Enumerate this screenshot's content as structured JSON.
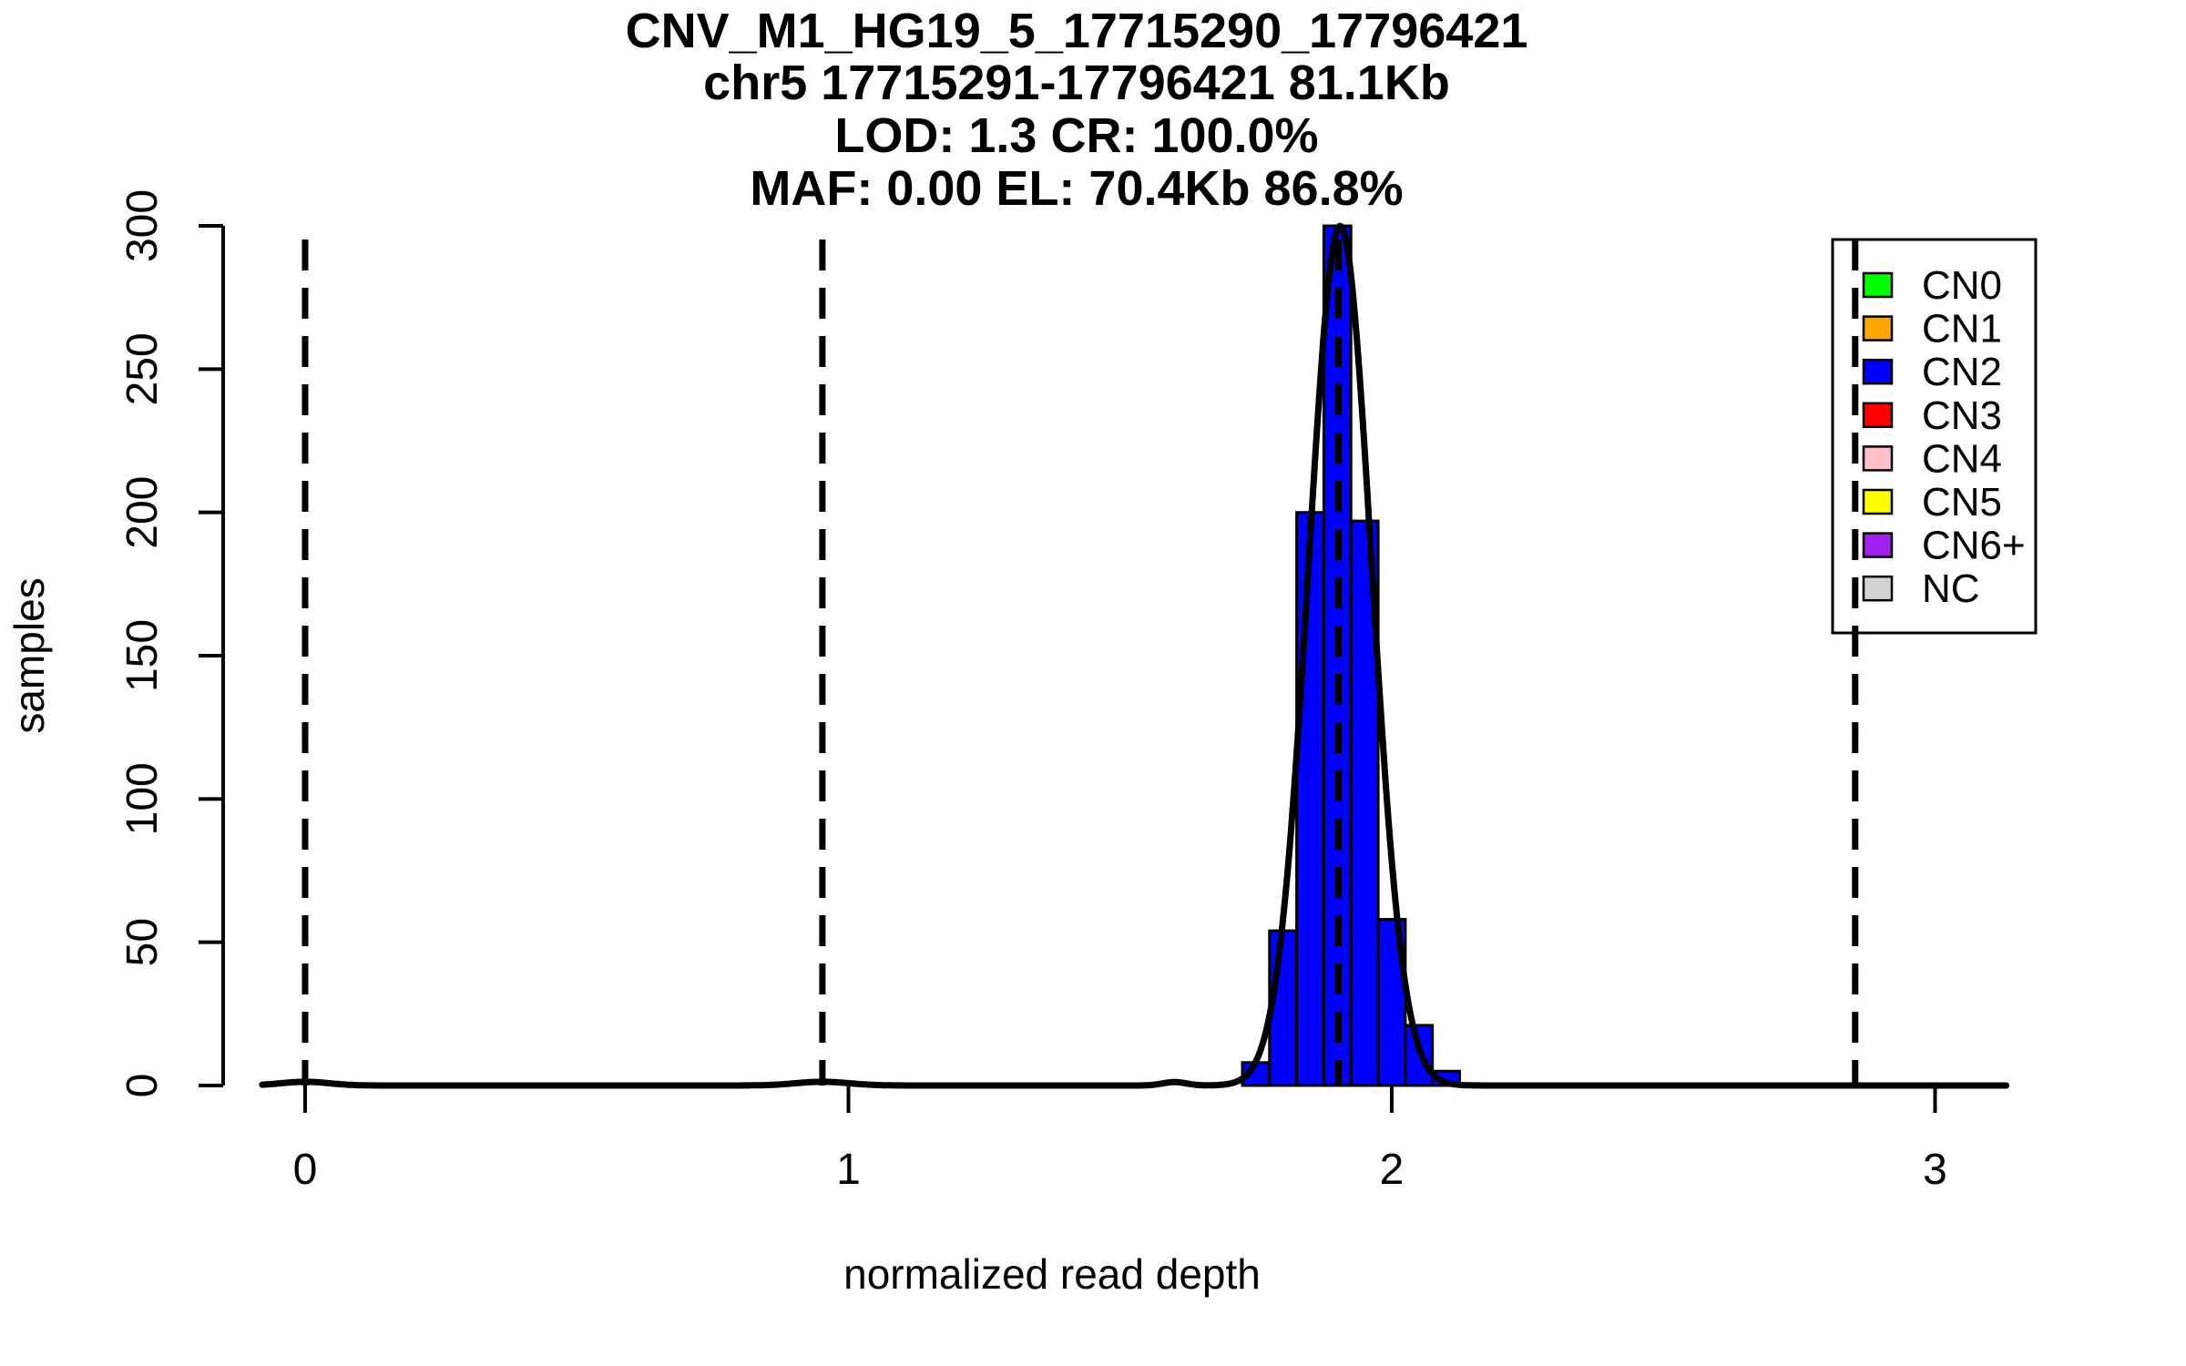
{
  "chart_data": {
    "type": "histogram",
    "title": "CNV_M1_HG19_5_17715290_17796421",
    "title_lines": [
      "CNV_M1_HG19_5_17715290_17796421",
      "chr5 17715291-17796421 81.1Kb",
      "LOD: 1.3 CR: 100.0%",
      "MAF: 0.00 EL: 70.4Kb 86.8%"
    ],
    "xlabel": "normalized read depth",
    "ylabel": "samples",
    "x_ticks": [
      0,
      1,
      2,
      3
    ],
    "y_ticks": [
      0,
      50,
      100,
      150,
      200,
      250,
      300
    ],
    "xlim": [
      -0.079,
      3.131
    ],
    "ylim": [
      0,
      300
    ],
    "grid": false,
    "axis_color": "#000000",
    "histogram": {
      "fill_color": "#0000FF",
      "stroke_color": "#000000",
      "bin_width": 0.05,
      "bins": [
        {
          "x_start": 1.725,
          "count": 8
        },
        {
          "x_start": 1.775,
          "count": 54
        },
        {
          "x_start": 1.825,
          "count": 200
        },
        {
          "x_start": 1.875,
          "count": 300
        },
        {
          "x_start": 1.925,
          "count": 197
        },
        {
          "x_start": 1.975,
          "count": 58
        },
        {
          "x_start": 2.025,
          "count": 21
        },
        {
          "x_start": 2.075,
          "count": 5
        }
      ]
    },
    "density_curve": {
      "color": "#000000",
      "components": [
        {
          "center": 1.905,
          "sigma": 0.058,
          "amplitude": 300
        },
        {
          "center": 0.0,
          "sigma": 0.045,
          "amplitude": 1.3
        },
        {
          "center": 0.952,
          "sigma": 0.05,
          "amplitude": 1.3
        },
        {
          "center": 1.6,
          "sigma": 0.022,
          "amplitude": 1.2
        }
      ]
    },
    "cn_marker_lines_x": [
      0,
      0.952,
      1.902,
      2.853
    ],
    "legend": {
      "position": "top-right",
      "entries": [
        {
          "label": "CN0",
          "color": "#00FF00"
        },
        {
          "label": "CN1",
          "color": "#FFA500"
        },
        {
          "label": "CN2",
          "color": "#0000FF"
        },
        {
          "label": "CN3",
          "color": "#FF0000"
        },
        {
          "label": "CN4",
          "color": "#FFC0CB"
        },
        {
          "label": "CN5",
          "color": "#FFFF00"
        },
        {
          "label": "CN6+",
          "color": "#A020F0"
        },
        {
          "label": "NC",
          "color": "#D3D3D3"
        }
      ]
    }
  }
}
